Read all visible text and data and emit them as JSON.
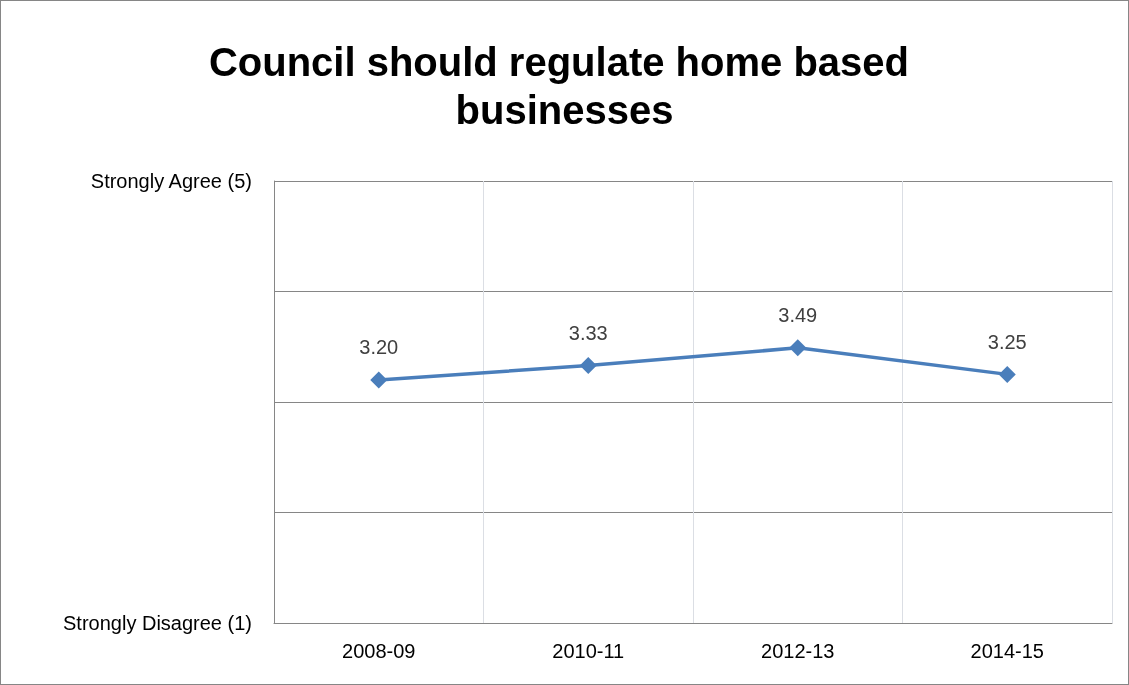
{
  "chart_data": {
    "type": "line",
    "title": "Council should regulate home based businesses",
    "categories": [
      "2008-09",
      "2010-11",
      "2012-13",
      "2014-15"
    ],
    "series": [
      {
        "color": "#4a7ebb",
        "values": [
          3.2,
          3.33,
          3.49,
          3.25
        ],
        "value_labels": [
          "3.20",
          "3.33",
          "3.49",
          "3.25"
        ]
      }
    ],
    "ylim": [
      1,
      5
    ],
    "yticks": [
      {
        "value": 1,
        "label": "Strongly Disagree (1)"
      },
      {
        "value": 2,
        "label": null
      },
      {
        "value": 3,
        "label": null
      },
      {
        "value": 4,
        "label": null
      },
      {
        "value": 5,
        "label": "Strongly Agree (5)"
      }
    ],
    "grid": true,
    "marker": "diamond",
    "line_style": "solid"
  }
}
